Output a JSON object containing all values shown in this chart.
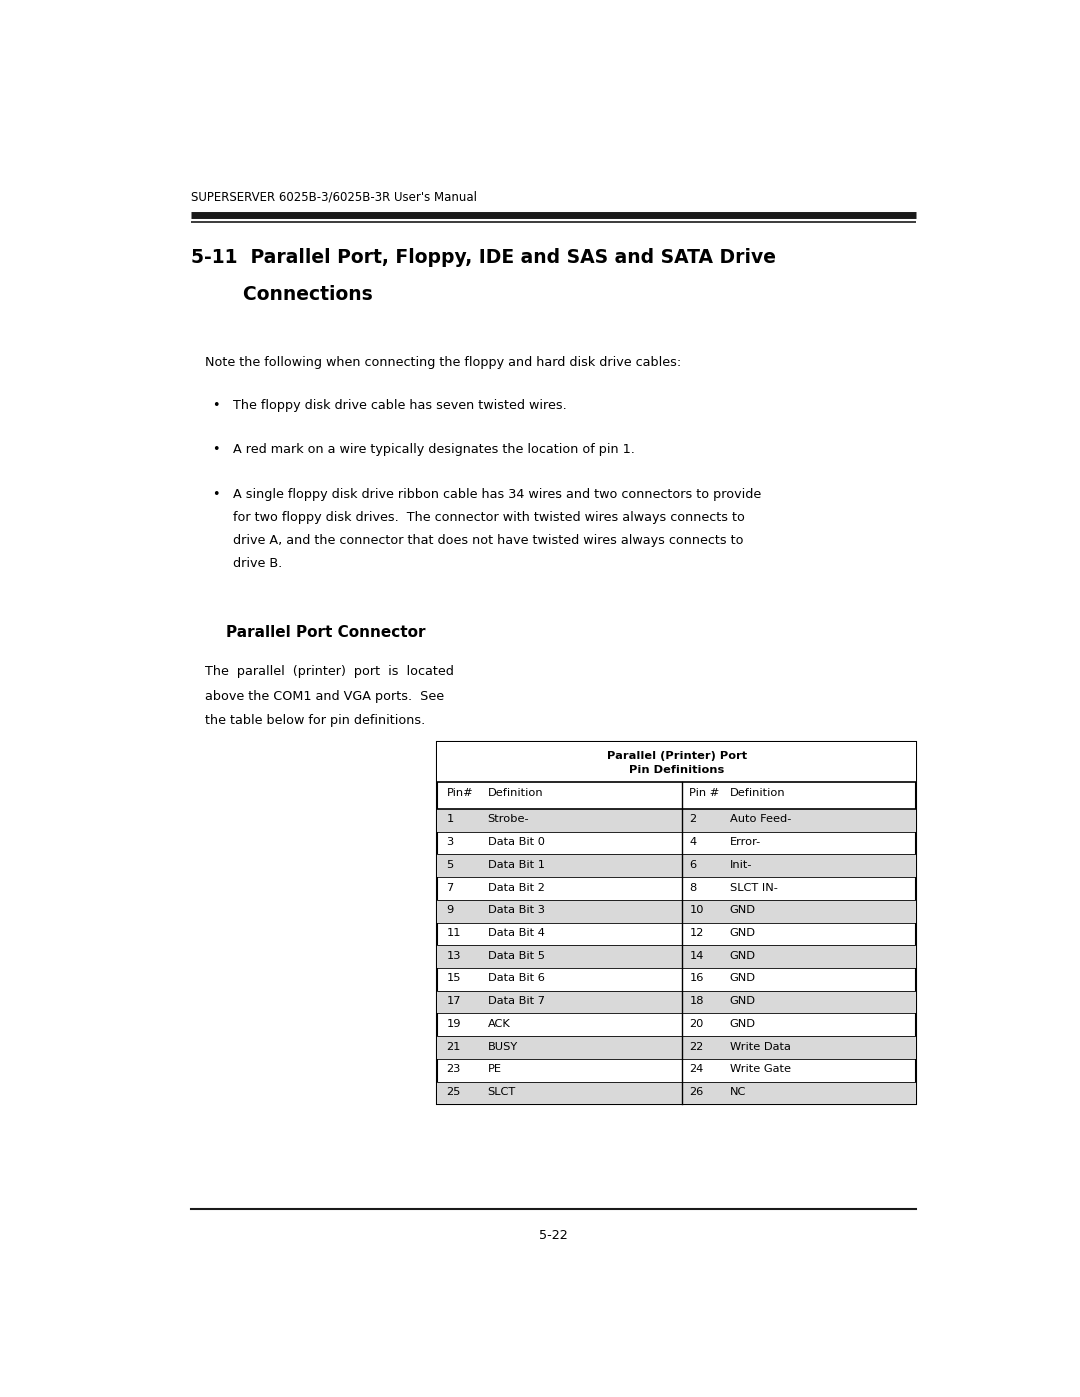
{
  "page_width": 10.8,
  "page_height": 13.97,
  "dpi": 100,
  "bg_color": "#ffffff",
  "header_text_display": "SUPERSERVER 6025B-3/6025B-3R User's Manual",
  "section_title_line1": "5-11  Parallel Port, Floppy, IDE and SAS and SATA Drive",
  "section_title_line2": "        Connections",
  "note_text": "Note the following when connecting the floppy and hard disk drive cables:",
  "bullet1": "The floppy disk drive cable has seven twisted wires.",
  "bullet2": "A red mark on a wire typically designates the location of pin 1.",
  "bullet3_line1": "A single floppy disk drive ribbon cable has 34 wires and two connectors to provide",
  "bullet3_line2": "for two floppy disk drives.  The connector with twisted wires always connects to",
  "bullet3_line3": "drive A, and the connector that does not have twisted wires always connects to",
  "bullet3_line4": "drive B.",
  "subsection_title": "Parallel Port Connector",
  "desc_text_line1": "The  parallel  (printer)  port  is  located",
  "desc_text_line2": "above the COM1 and VGA ports.  See",
  "desc_text_line3": "the table below for pin definitions.",
  "table_title_line1": "Parallel (Printer) Port",
  "table_title_line2": "Pin Definitions",
  "table_header": [
    "Pin#",
    "Definition",
    "Pin #",
    "Definition"
  ],
  "table_rows": [
    [
      "1",
      "Strobe-",
      "2",
      "Auto Feed-"
    ],
    [
      "3",
      "Data Bit 0",
      "4",
      "Error-"
    ],
    [
      "5",
      "Data Bit 1",
      "6",
      "Init-"
    ],
    [
      "7",
      "Data Bit 2",
      "8",
      "SLCT IN-"
    ],
    [
      "9",
      "Data Bit 3",
      "10",
      "GND"
    ],
    [
      "11",
      "Data Bit 4",
      "12",
      "GND"
    ],
    [
      "13",
      "Data Bit 5",
      "14",
      "GND"
    ],
    [
      "15",
      "Data Bit 6",
      "16",
      "GND"
    ],
    [
      "17",
      "Data Bit 7",
      "18",
      "GND"
    ],
    [
      "19",
      "ACK",
      "20",
      "GND"
    ],
    [
      "21",
      "BUSY",
      "22",
      "Write Data"
    ],
    [
      "23",
      "PE",
      "24",
      "Write Gate"
    ],
    [
      "25",
      "SLCT",
      "26",
      "NC"
    ]
  ],
  "row_shade_color": "#d9d9d9",
  "table_border_color": "#000000",
  "footer_text": "5-22",
  "text_color": "#000000",
  "header_bar_color": "#1a1a1a"
}
